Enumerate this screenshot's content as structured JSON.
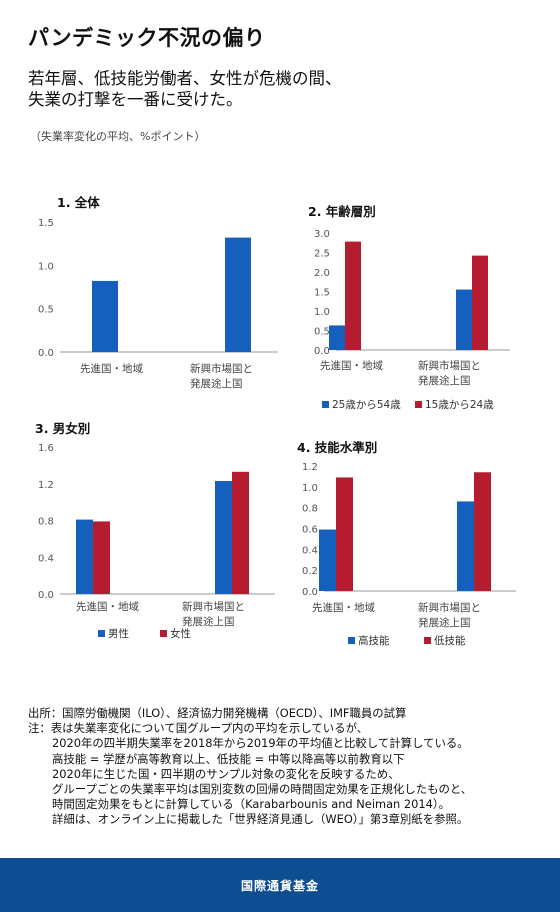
{
  "title": "パンデミック不況の偏り",
  "subtitle_lines": [
    "若年層、低技能労働者、女性が危機の間、",
    "失業の打撃を一番に受けた。"
  ],
  "unit_note": "（失業率変化の平均、%ポイント）",
  "colors": {
    "blue": "#1560bd",
    "red": "#b51c30",
    "footer": "#0d4d92"
  },
  "chart_data": [
    {
      "type": "bar",
      "title": "1. 全体",
      "categories": [
        "先進国・地域",
        "新興市場国と|発展途上国"
      ],
      "series": [
        {
          "values": [
            0.82,
            1.32
          ]
        }
      ],
      "ylim": [
        0,
        1.5
      ],
      "yticks": [
        "0.0",
        "0.5",
        "1.0",
        "1.5"
      ],
      "legend": []
    },
    {
      "type": "bar",
      "title": "2. 年齢層別",
      "categories": [
        "先進国・地域",
        "新興市場国と|発展途上国"
      ],
      "series": [
        {
          "name": "25歳から54歳",
          "values": [
            0.63,
            1.55
          ]
        },
        {
          "name": "15歳から24歳",
          "values": [
            2.78,
            2.42
          ]
        }
      ],
      "ylim": [
        0,
        3.0
      ],
      "yticks": [
        "0.0",
        "0.5",
        "1.0",
        "1.5",
        "2.0",
        "2.5",
        "3.0"
      ],
      "legend": [
        "25歳から54歳",
        "15歳から24歳"
      ]
    },
    {
      "type": "bar",
      "title": "3. 男女別",
      "categories": [
        "先進国・地域",
        "新興市場国と|発展途上国"
      ],
      "series": [
        {
          "name": "男性",
          "values": [
            0.81,
            1.23
          ]
        },
        {
          "name": "女性",
          "values": [
            0.79,
            1.33
          ]
        }
      ],
      "ylim": [
        0,
        1.6
      ],
      "yticks": [
        "0.0",
        "0.4",
        "0.8",
        "1.2",
        "1.6"
      ],
      "legend": [
        "男性",
        "女性"
      ]
    },
    {
      "type": "bar",
      "title": "4. 技能水準別",
      "categories": [
        "先進国・地域",
        "新興市場国と|発展途上国"
      ],
      "series": [
        {
          "name": "高技能",
          "values": [
            0.59,
            0.86
          ]
        },
        {
          "name": "低技能",
          "values": [
            1.09,
            1.14
          ]
        }
      ],
      "ylim": [
        0,
        1.2
      ],
      "yticks": [
        "0.0",
        "0.2",
        "0.4",
        "0.6",
        "0.8",
        "1.0",
        "1.2"
      ],
      "legend": [
        "高技能",
        "低技能"
      ]
    }
  ],
  "notes": [
    "出所：国際労働機関（ILO）、経済協力開発機構（OECD）、IMF職員の試算",
    "注：表は失業率変化について国グループ内の平均を示しているが、",
    "2020年の四半期失業率を2018年から2019年の平均値と比較して計算している。",
    "高技能 = 学歴が高等教育以上、低技能 = 中等以降高等以前教育以下",
    "2020年に生じた国・四半期のサンプル対象の変化を反映するため、",
    "グループごとの失業率平均は国別変数の回帰の時間固定効果を正規化したものと、",
    "時間固定効果をもとに計算している（Karabarbounis and Neiman 2014）。",
    "詳細は、オンライン上に掲載した「世界経済見通し（WEO）」第3章別紙を参照。"
  ],
  "footer": "国際通貨基金"
}
